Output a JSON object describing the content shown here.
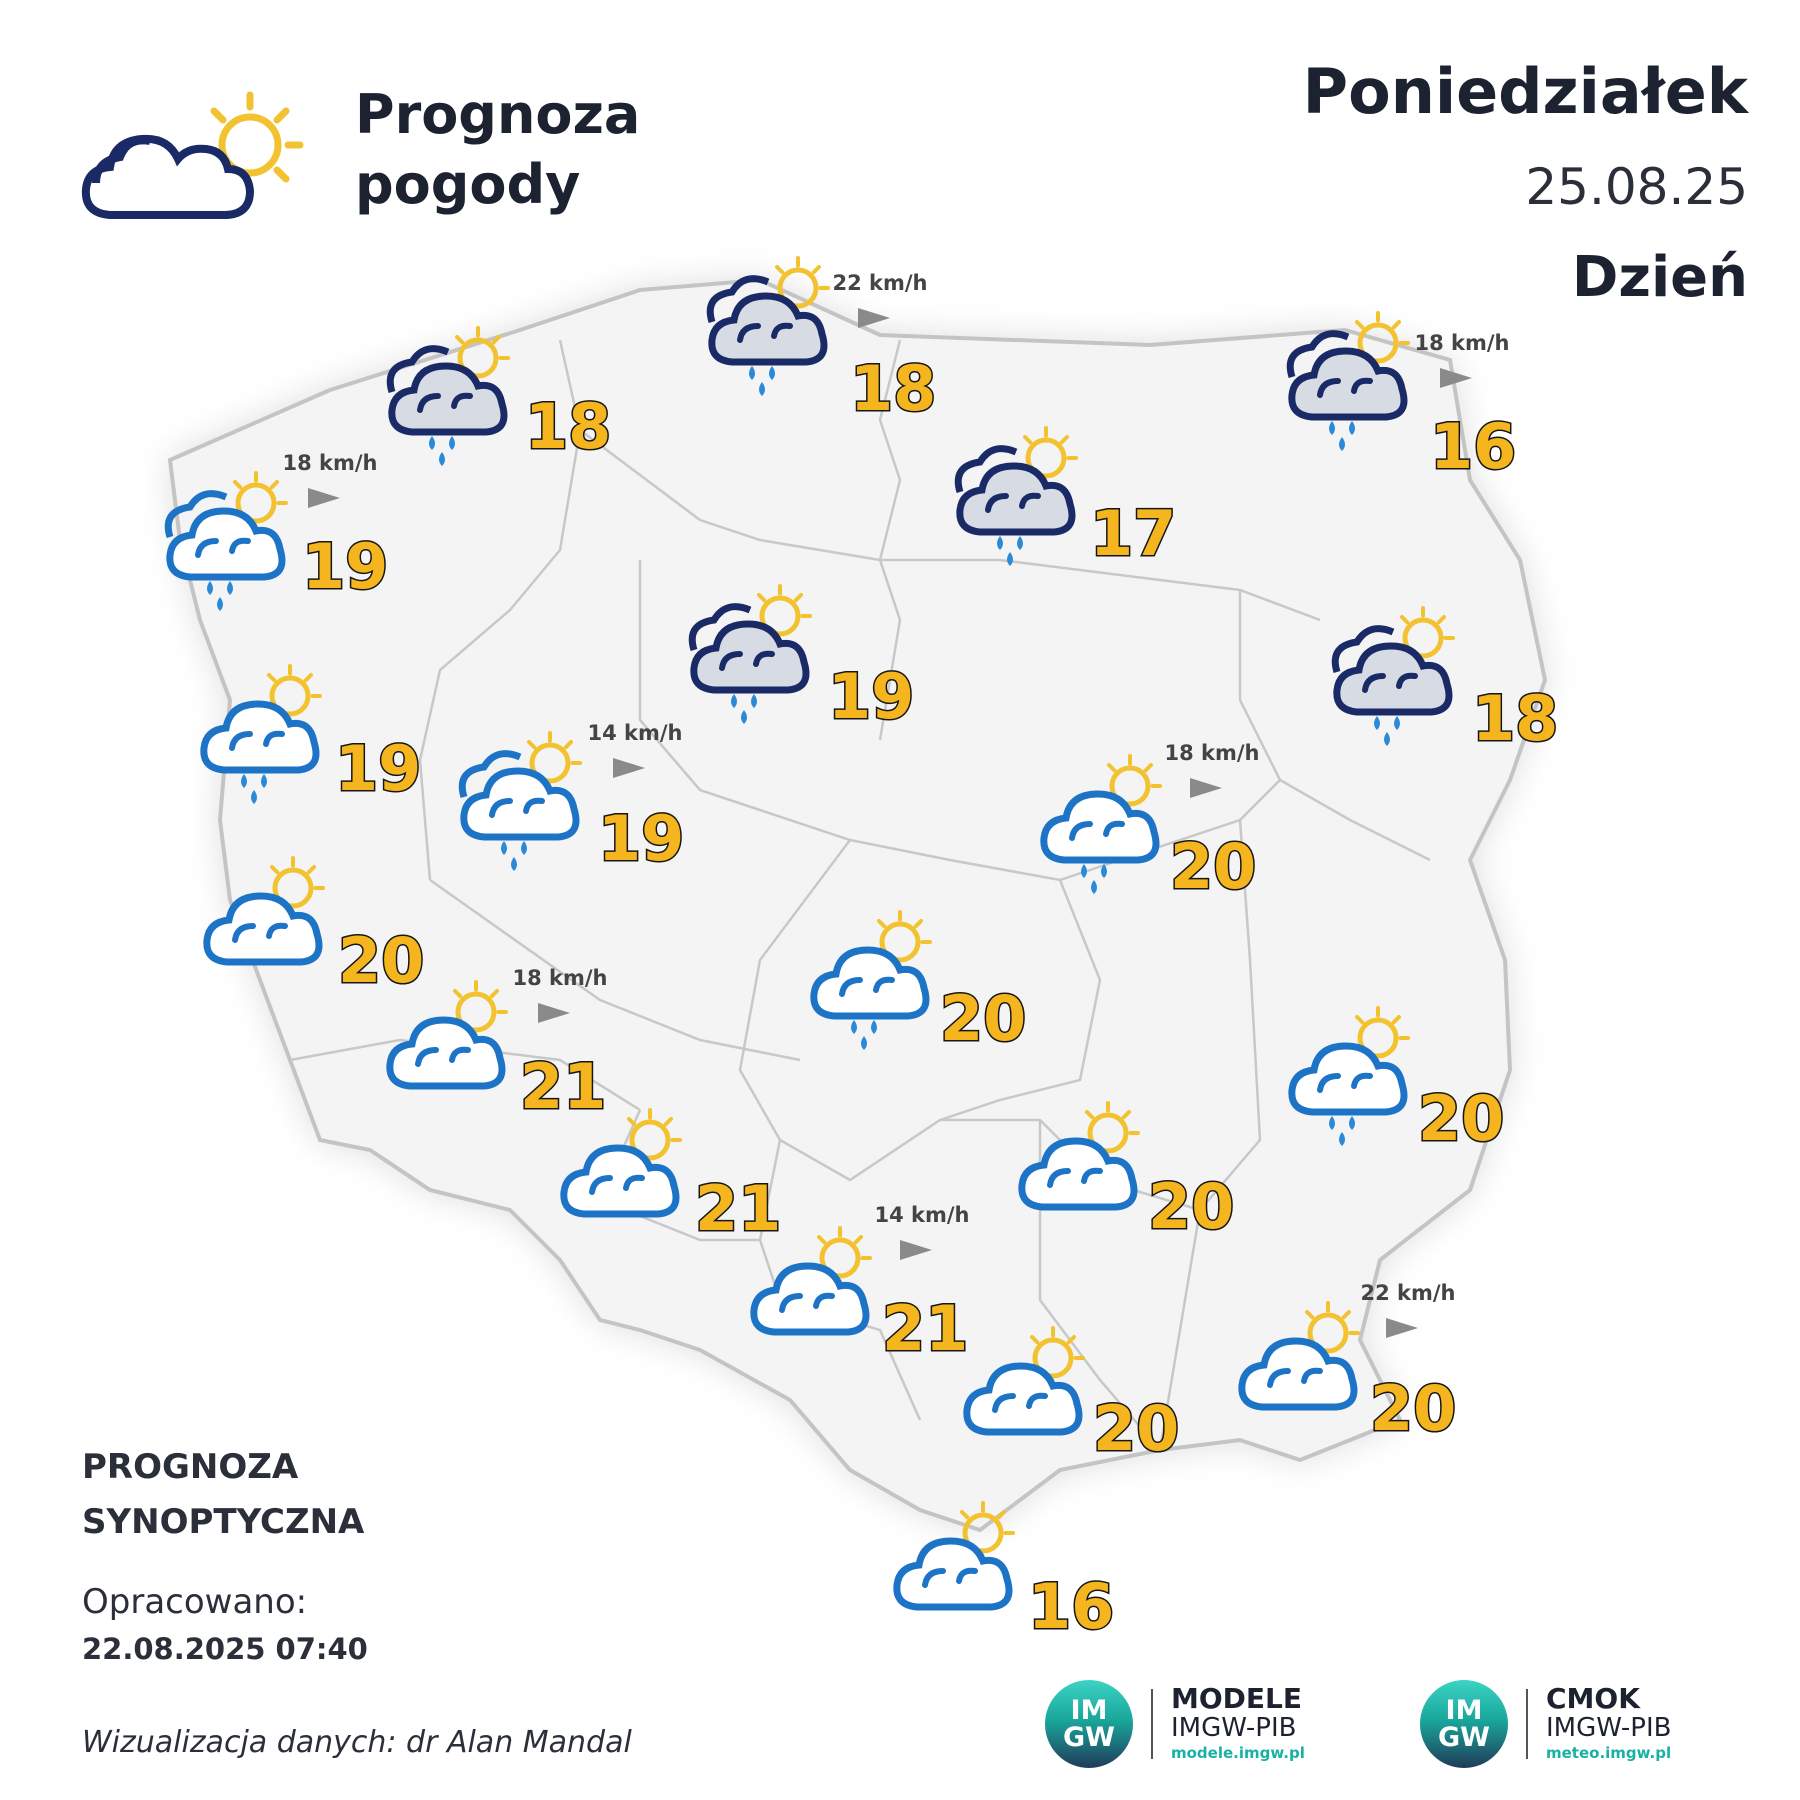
{
  "header": {
    "title_line1": "Prognoza",
    "title_line2": "pogody",
    "day": "Poniedziałek",
    "date": "25.08.25",
    "period": "Dzień"
  },
  "footer": {
    "heading_line1": "PROGNOZA",
    "heading_line2": "SYNOPTYCZNA",
    "prepared_label": "Opracowano:",
    "prepared_datetime": "22.08.2025 07:40",
    "credit": "Wizualizacja danych: dr Alan Mandal"
  },
  "logos": [
    {
      "circle_top": "IM",
      "circle_bottom": "GW",
      "name": "MODELE",
      "org": "IMGW-PIB",
      "url": "modele.imgw.pl"
    },
    {
      "circle_top": "IM",
      "circle_bottom": "GW",
      "name": "CMOK",
      "org": "IMGW-PIB",
      "url": "meteo.imgw.pl"
    }
  ],
  "colors": {
    "temperature_fill": "#f4b51e",
    "cloud_navy": "#1a2a66",
    "cloud_blue": "#1d74c6",
    "sun": "#f2c230",
    "rain": "#2a8ad8",
    "map_fill": "#f4f4f4",
    "map_border": "#c4c4c4"
  },
  "forecast": [
    {
      "region": "northwest-coast",
      "temp": "18",
      "icon": "rain-cloud-sun-navy",
      "wind": ""
    },
    {
      "region": "gdansk",
      "temp": "18",
      "icon": "rain-cloud-sun-navy",
      "wind": "22 km/h"
    },
    {
      "region": "northeast",
      "temp": "16",
      "icon": "rain-cloud-sun-navy",
      "wind": "18 km/h"
    },
    {
      "region": "szczecin",
      "temp": "19",
      "icon": "rain-cloud-sun-blue",
      "wind": "18 km/h"
    },
    {
      "region": "olsztyn",
      "temp": "17",
      "icon": "rain-cloud-sun-navy",
      "wind": ""
    },
    {
      "region": "bydgoszcz",
      "temp": "19",
      "icon": "rain-cloud-sun-navy",
      "wind": ""
    },
    {
      "region": "bialystok",
      "temp": "18",
      "icon": "rain-cloud-sun-navy",
      "wind": ""
    },
    {
      "region": "gorzow",
      "temp": "19",
      "icon": "cloud-sun-rain-blue",
      "wind": ""
    },
    {
      "region": "poznan",
      "temp": "19",
      "icon": "rain-cloud-sun-blue",
      "wind": "14 km/h"
    },
    {
      "region": "warszawa",
      "temp": "20",
      "icon": "cloud-sun-rain-blue",
      "wind": "18 km/h"
    },
    {
      "region": "zielona-gora",
      "temp": "20",
      "icon": "cloud-sun-blue",
      "wind": ""
    },
    {
      "region": "lodz",
      "temp": "20",
      "icon": "cloud-sun-rain-blue",
      "wind": ""
    },
    {
      "region": "wroclaw",
      "temp": "21",
      "icon": "cloud-sun-blue",
      "wind": "18 km/h"
    },
    {
      "region": "lublin",
      "temp": "20",
      "icon": "cloud-sun-rain-blue",
      "wind": ""
    },
    {
      "region": "opole",
      "temp": "21",
      "icon": "cloud-sun-blue",
      "wind": ""
    },
    {
      "region": "kielce",
      "temp": "20",
      "icon": "cloud-sun-blue",
      "wind": ""
    },
    {
      "region": "katowice",
      "temp": "21",
      "icon": "cloud-sun-blue",
      "wind": "14 km/h"
    },
    {
      "region": "krakow",
      "temp": "20",
      "icon": "cloud-sun-blue",
      "wind": ""
    },
    {
      "region": "rzeszow",
      "temp": "20",
      "icon": "cloud-sun-blue",
      "wind": "22 km/h"
    },
    {
      "region": "zakopane",
      "temp": "16",
      "icon": "cloud-sun-blue",
      "wind": ""
    }
  ]
}
